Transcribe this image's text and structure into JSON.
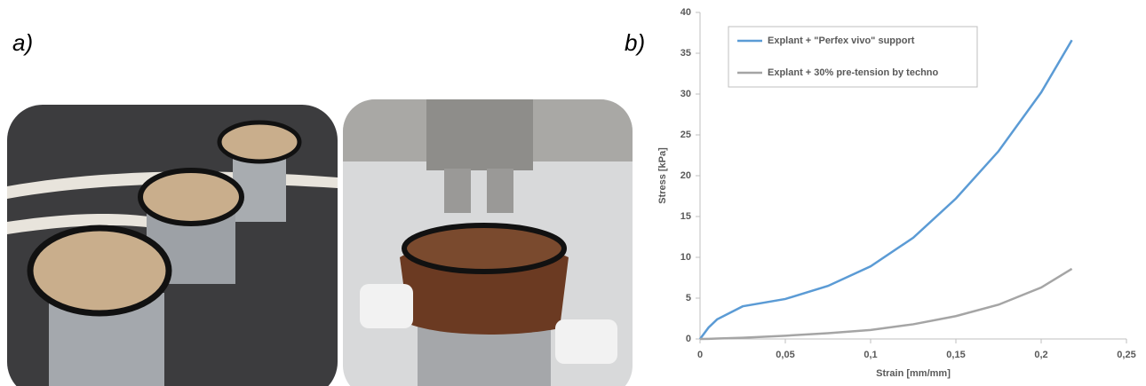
{
  "panel_labels": [
    "a)",
    "b)"
  ],
  "chart_data": {
    "type": "line",
    "x_label": "Strain [mm/mm]",
    "y_label": "Stress [kPa]",
    "x": [
      0,
      0.005,
      0.01,
      0.025,
      0.05,
      0.075,
      0.1,
      0.125,
      0.15,
      0.175,
      0.2,
      0.218
    ],
    "series": [
      {
        "name": "Explant + \"Perfex vivo\" support",
        "color": "#5b9bd5",
        "values": [
          0,
          1.4,
          2.4,
          4.0,
          4.9,
          6.5,
          8.9,
          12.4,
          17.2,
          23.0,
          30.2,
          36.6
        ]
      },
      {
        "name": "Explant + 30% pre-tension by techno",
        "color": "#a5a5a5",
        "values": [
          0,
          0.02,
          0.05,
          0.15,
          0.4,
          0.7,
          1.1,
          1.8,
          2.8,
          4.2,
          6.3,
          8.6
        ]
      }
    ],
    "xlim": [
      0,
      0.25
    ],
    "ylim": [
      0,
      40
    ],
    "xticks": [
      0,
      {
        "value": 0.05,
        "label": "0,05"
      },
      {
        "value": 0.1,
        "label": "0,1"
      },
      {
        "value": 0.15,
        "label": "0,15"
      },
      {
        "value": 0.2,
        "label": "0,2"
      },
      {
        "value": 0.25,
        "label": "0,25"
      }
    ],
    "yticks": [
      0,
      5,
      10,
      15,
      20,
      25,
      30,
      35,
      40
    ],
    "grid": false,
    "legend": "upper left"
  }
}
